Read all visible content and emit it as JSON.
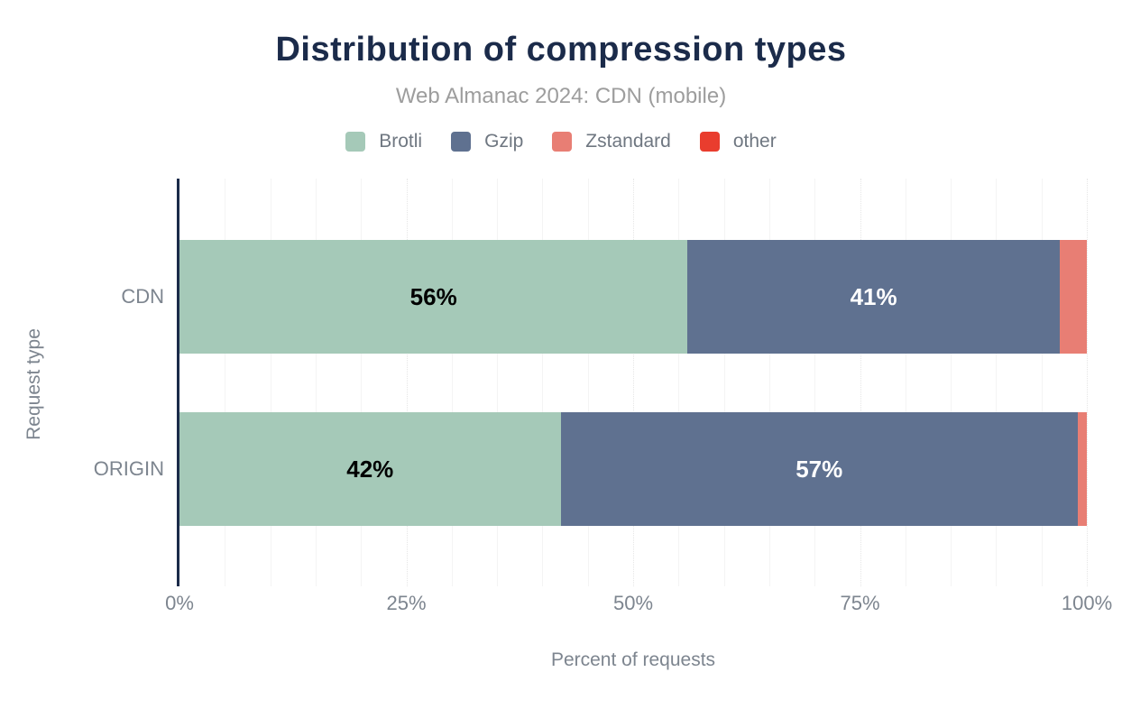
{
  "chart_data": {
    "type": "bar",
    "orientation": "horizontal-stacked",
    "title": "Distribution of compression types",
    "subtitle": "Web Almanac 2024: CDN (mobile)",
    "xlabel": "Percent of requests",
    "ylabel": "Request type",
    "xlim": [
      0,
      100
    ],
    "x_ticks": [
      "0%",
      "25%",
      "50%",
      "75%",
      "100%"
    ],
    "x_tick_values": [
      0,
      25,
      50,
      75,
      100
    ],
    "grid": "vertical minor every 5%, dotted major every 25%",
    "legend_position": "top-center",
    "categories": [
      "CDN",
      "ORIGIN"
    ],
    "series": [
      {
        "name": "Brotli",
        "color": "#a5c9b8",
        "label_color": "#000000",
        "values": [
          56,
          42
        ],
        "labels": [
          "56%",
          "42%"
        ]
      },
      {
        "name": "Gzip",
        "color": "#5f7190",
        "label_color": "#ffffff",
        "values": [
          41,
          57
        ],
        "labels": [
          "41%",
          "57%"
        ]
      },
      {
        "name": "Zstandard",
        "color": "#e87e74",
        "label_color": "#000000",
        "values": [
          3,
          1
        ],
        "labels": [
          "",
          ""
        ]
      },
      {
        "name": "other",
        "color": "#e93d2e",
        "label_color": "#ffffff",
        "values": [
          0,
          0
        ],
        "labels": [
          "",
          ""
        ]
      }
    ],
    "label_min_value": 5
  },
  "colors": {
    "title_text": "#1b2b4a",
    "subtitle_text": "#9d9d9d",
    "axis_line": "#1b2b4a",
    "muted_text": "#7d858f",
    "legend_text": "#6f7781",
    "gridline_minor": "#f4f4f4",
    "gridline_major": "#e6e6e6",
    "background": "#ffffff"
  }
}
